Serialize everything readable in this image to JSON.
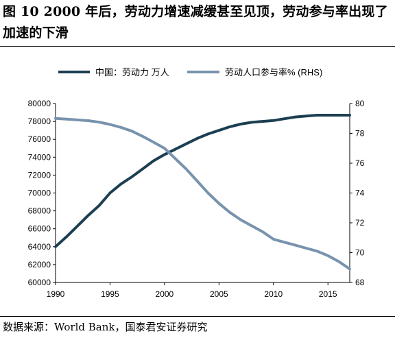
{
  "title": "图 10 2000 年后，劳动力增速减缓甚至见顶，劳动参与率出现了加速的下滑",
  "source": "数据来源：World Bank，国泰君安证券研究",
  "colors": {
    "labor": "#1c3f52",
    "participation": "#7893ad"
  },
  "chart_data": {
    "type": "line",
    "x_ticks": [
      "1990",
      "1995",
      "2000",
      "2005",
      "2010",
      "2015"
    ],
    "y_ticks_left": [
      "80000",
      "78000",
      "76000",
      "74000",
      "72000",
      "70000",
      "68000",
      "66000",
      "64000",
      "62000",
      "60000"
    ],
    "y_ticks_right": [
      "80",
      "78",
      "76",
      "74",
      "72",
      "70",
      "68"
    ],
    "xlim": [
      1990,
      2017
    ],
    "ylim_left": [
      60000,
      80000
    ],
    "ylim_right": [
      68,
      80
    ],
    "legend_position": "top",
    "series": [
      {
        "name": "中国：劳动力 万人",
        "axis": "left",
        "x": [
          1990,
          1991,
          1992,
          1993,
          1994,
          1995,
          1996,
          1997,
          1998,
          1999,
          2000,
          2001,
          2002,
          2003,
          2004,
          2005,
          2006,
          2007,
          2008,
          2009,
          2010,
          2011,
          2012,
          2013,
          2014,
          2015,
          2016,
          2017
        ],
        "values": [
          64000,
          65100,
          66300,
          67500,
          68600,
          70000,
          71000,
          71800,
          72700,
          73600,
          74300,
          74900,
          75500,
          76100,
          76600,
          77000,
          77400,
          77700,
          77900,
          78000,
          78100,
          78300,
          78500,
          78600,
          78700,
          78700,
          78700,
          78700
        ]
      },
      {
        "name": "劳动人口参与率% (RHS)",
        "axis": "right",
        "x": [
          1990,
          1991,
          1992,
          1993,
          1994,
          1995,
          1996,
          1997,
          1998,
          1999,
          2000,
          2001,
          2002,
          2003,
          2004,
          2005,
          2006,
          2007,
          2008,
          2009,
          2010,
          2011,
          2012,
          2013,
          2014,
          2015,
          2016,
          2017
        ],
        "values": [
          79.0,
          78.95,
          78.9,
          78.85,
          78.75,
          78.6,
          78.4,
          78.15,
          77.8,
          77.4,
          77.0,
          76.3,
          75.6,
          74.8,
          74.0,
          73.3,
          72.7,
          72.2,
          71.8,
          71.4,
          70.9,
          70.7,
          70.5,
          70.3,
          70.1,
          69.8,
          69.4,
          68.9
        ]
      }
    ]
  }
}
